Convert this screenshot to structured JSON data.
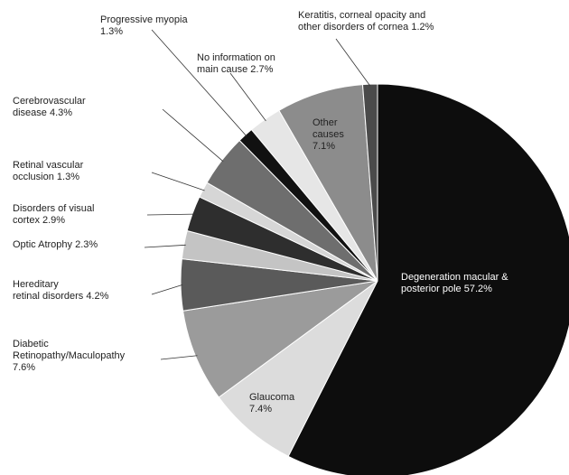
{
  "chart_data": {
    "type": "pie",
    "title": "",
    "slices": [
      {
        "label_lines": [
          "Degeneration macular &",
          "posterior pole 57.2%"
        ],
        "value": 57.2,
        "color": "#0d0d0d"
      },
      {
        "label_lines": [
          "Glaucoma",
          "7.4%"
        ],
        "value": 7.4,
        "color": "#dcdcdc"
      },
      {
        "label_lines": [
          "Diabetic",
          "Retinopathy/Maculopathy",
          "7.6%"
        ],
        "value": 7.6,
        "color": "#9b9b9b"
      },
      {
        "label_lines": [
          "Hereditary",
          "retinal disorders 4.2%"
        ],
        "value": 4.2,
        "color": "#5a5a5a"
      },
      {
        "label_lines": [
          "Optic Atrophy 2.3%"
        ],
        "value": 2.3,
        "color": "#c4c4c4"
      },
      {
        "label_lines": [
          "Disorders of visual",
          "cortex 2.9%"
        ],
        "value": 2.9,
        "color": "#2e2e2e"
      },
      {
        "label_lines": [
          "Retinal vascular",
          "occlusion 1.3%"
        ],
        "value": 1.3,
        "color": "#d6d6d6"
      },
      {
        "label_lines": [
          "Cerebrovascular",
          "disease 4.3%"
        ],
        "value": 4.3,
        "color": "#6e6e6e"
      },
      {
        "label_lines": [
          "Progressive myopia",
          "1.3%"
        ],
        "value": 1.3,
        "color": "#111111"
      },
      {
        "label_lines": [
          "No information on",
          "main cause 2.7%"
        ],
        "value": 2.7,
        "color": "#e6e6e6"
      },
      {
        "label_lines": [
          "Other",
          "causes",
          "7.1%"
        ],
        "value": 7.1,
        "color": "#8c8c8c"
      },
      {
        "label_lines": [
          "Keratitis, corneal opacity and",
          "other disorders of cornea 1.2%"
        ],
        "value": 1.2,
        "color": "#4a4a4a"
      }
    ]
  }
}
